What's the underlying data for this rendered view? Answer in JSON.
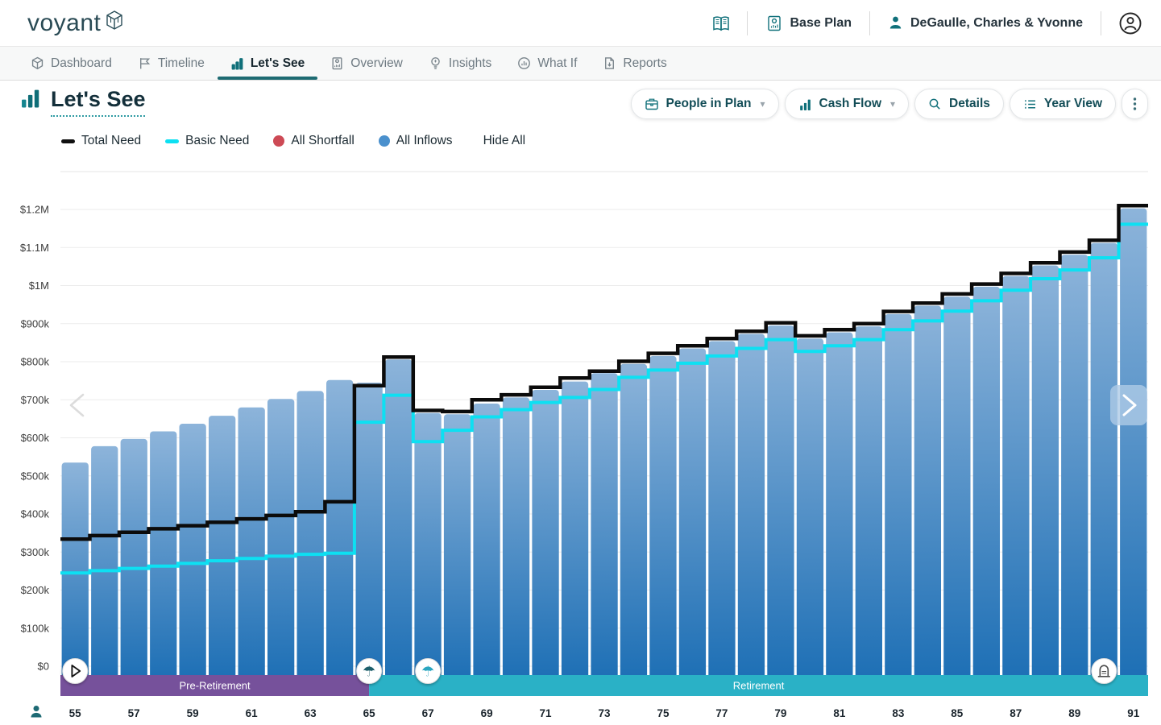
{
  "header": {
    "logo_text": "voyant",
    "plan_label": "Base Plan",
    "client_name": "DeGaulle, Charles & Yvonne"
  },
  "nav": {
    "items": [
      {
        "label": "Dashboard"
      },
      {
        "label": "Timeline"
      },
      {
        "label": "Let's See"
      },
      {
        "label": "Overview"
      },
      {
        "label": "Insights"
      },
      {
        "label": "What If"
      },
      {
        "label": "Reports"
      }
    ]
  },
  "page": {
    "title": "Let's See"
  },
  "toolbar": {
    "buttons": [
      {
        "label": "People in Plan",
        "has_dropdown": true
      },
      {
        "label": "Cash Flow",
        "has_dropdown": true
      },
      {
        "label": "Details",
        "has_dropdown": false
      },
      {
        "label": "Year View",
        "has_dropdown": false
      }
    ]
  },
  "legend": {
    "items": [
      {
        "label": "Total Need",
        "swatch": "dash",
        "color": "#111111"
      },
      {
        "label": "Basic Need",
        "swatch": "dash",
        "color": "#0de0f2"
      },
      {
        "label": "All Shortfall",
        "swatch": "circle",
        "color": "#cd4a55"
      },
      {
        "label": "All Inflows",
        "swatch": "circle",
        "color": "#4a90cd"
      }
    ],
    "hide_all_label": "Hide All"
  },
  "chart_data": {
    "type": "bar",
    "ages": [
      55,
      56,
      57,
      58,
      59,
      60,
      61,
      62,
      63,
      64,
      65,
      66,
      67,
      68,
      69,
      70,
      71,
      72,
      73,
      74,
      75,
      76,
      77,
      78,
      79,
      80,
      81,
      82,
      83,
      84,
      85,
      86,
      87,
      88,
      89,
      90,
      91
    ],
    "x_tick_ages": [
      55,
      57,
      59,
      61,
      63,
      65,
      67,
      69,
      71,
      73,
      75,
      77,
      79,
      81,
      83,
      85,
      87,
      89,
      91
    ],
    "y_ticks": [
      {
        "value": 0,
        "label": "$0"
      },
      {
        "value": 100,
        "label": "$100k"
      },
      {
        "value": 200,
        "label": "$200k"
      },
      {
        "value": 300,
        "label": "$300k"
      },
      {
        "value": 400,
        "label": "$400k"
      },
      {
        "value": 500,
        "label": "$500k"
      },
      {
        "value": 600,
        "label": "$600k"
      },
      {
        "value": 700,
        "label": "$700k"
      },
      {
        "value": 800,
        "label": "$800k"
      },
      {
        "value": 900,
        "label": "$900k"
      },
      {
        "value": 1000,
        "label": "$1M"
      },
      {
        "value": 1100,
        "label": "$1.1M"
      },
      {
        "value": 1200,
        "label": "$1.2M"
      }
    ],
    "ylim": [
      0,
      1285
    ],
    "series": [
      {
        "name": "All Inflows",
        "type": "bar",
        "values_k": [
          535,
          578,
          597,
          617,
          637,
          658,
          680,
          702,
          723,
          752,
          745,
          806,
          665,
          662,
          690,
          706,
          726,
          748,
          770,
          794,
          815,
          835,
          854,
          873,
          895,
          861,
          877,
          893,
          925,
          947,
          971,
          997,
          1025,
          1053,
          1081,
          1112,
          1203
        ]
      },
      {
        "name": "Basic Need",
        "type": "step_line",
        "color": "#0de0f2",
        "values_k": [
          245,
          251,
          257,
          263,
          270,
          277,
          283,
          289,
          294,
          297,
          641,
          712,
          590,
          620,
          655,
          674,
          693,
          706,
          727,
          759,
          778,
          796,
          815,
          835,
          858,
          827,
          842,
          858,
          884,
          907,
          933,
          960,
          988,
          1018,
          1041,
          1073,
          1161
        ]
      },
      {
        "name": "Total Need",
        "type": "step_line",
        "color": "#0b0b0b",
        "values_k": [
          334,
          343,
          352,
          361,
          369,
          378,
          387,
          396,
          406,
          432,
          737,
          812,
          672,
          669,
          700,
          713,
          733,
          757,
          775,
          801,
          822,
          842,
          861,
          880,
          902,
          868,
          884,
          900,
          932,
          954,
          978,
          1004,
          1032,
          1060,
          1088,
          1119,
          1210
        ]
      }
    ],
    "bar_gradient": {
      "top": "#8db4da",
      "bottom": "#1d6fb5"
    },
    "bands": [
      {
        "label": "Pre-Retirement",
        "color": "#76519b",
        "from_age": 55,
        "to_age": 65
      },
      {
        "label": "Retirement",
        "color": "#2ab1c6",
        "from_age": 65,
        "to_age": 92
      }
    ],
    "event_markers": [
      {
        "age": 55,
        "icon": "play"
      },
      {
        "age": 65,
        "icon": "umbrella",
        "color": "#1d5f6b"
      },
      {
        "age": 67,
        "icon": "umbrella",
        "color": "#2aa6c0"
      },
      {
        "age": 90,
        "icon": "tombstone",
        "color": "#4c4c4c"
      }
    ],
    "legend_position": "top-left",
    "grid": true
  }
}
